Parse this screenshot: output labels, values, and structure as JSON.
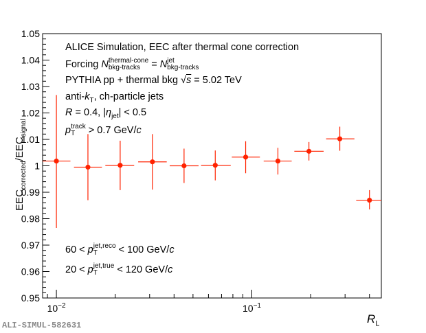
{
  "chart_data": {
    "type": "scatter",
    "xscale": "log",
    "xlim": [
      0.0085,
      0.46
    ],
    "ylim": [
      0.95,
      1.05
    ],
    "grid": false,
    "legend": "none",
    "marker_color": "#ff2200",
    "yticks": [
      0.95,
      0.96,
      0.97,
      0.98,
      0.99,
      1,
      1.01,
      1.02,
      1.03,
      1.04,
      1.05
    ],
    "ytick_labels": [
      "0.95",
      "0.96",
      "0.97",
      "0.98",
      "0.99",
      "1",
      "1.01",
      "1.02",
      "1.03",
      "1.04",
      "1.05"
    ],
    "xtick_labels": [
      {
        "value": 0.01,
        "base": "10",
        "exp": "−2"
      },
      {
        "value": 0.1,
        "base": "10",
        "exp": "−1"
      }
    ],
    "xlabel": {
      "base": "R",
      "sub": "L"
    },
    "ylabel": {
      "a": "EEC",
      "a_sub": "corrected",
      "b": "/EEC",
      "b_sub": "signal"
    },
    "points": [
      {
        "x": 0.01,
        "xlo": 0.0085,
        "xhi": 0.0118,
        "y": 1.0018,
        "ylo": 0.9765,
        "yhi": 1.0268
      },
      {
        "x": 0.0145,
        "xlo": 0.0123,
        "xhi": 0.0171,
        "y": 0.9995,
        "ylo": 0.987,
        "yhi": 1.012
      },
      {
        "x": 0.0212,
        "xlo": 0.0178,
        "xhi": 0.025,
        "y": 1.0002,
        "ylo": 0.9908,
        "yhi": 1.0095
      },
      {
        "x": 0.031,
        "xlo": 0.0262,
        "xhi": 0.0367,
        "y": 1.0015,
        "ylo": 0.991,
        "yhi": 1.012
      },
      {
        "x": 0.045,
        "xlo": 0.038,
        "xhi": 0.0534,
        "y": 1.0,
        "ylo": 0.9935,
        "yhi": 1.0065
      },
      {
        "x": 0.065,
        "xlo": 0.055,
        "xhi": 0.078,
        "y": 1.0002,
        "ylo": 0.9945,
        "yhi": 1.0058
      },
      {
        "x": 0.093,
        "xlo": 0.079,
        "xhi": 0.11,
        "y": 1.0033,
        "ylo": 0.9972,
        "yhi": 1.0093
      },
      {
        "x": 0.136,
        "xlo": 0.115,
        "xhi": 0.16,
        "y": 1.0018,
        "ylo": 0.9967,
        "yhi": 1.0068
      },
      {
        "x": 0.196,
        "xlo": 0.165,
        "xhi": 0.233,
        "y": 1.0055,
        "ylo": 1.002,
        "yhi": 1.009
      },
      {
        "x": 0.282,
        "xlo": 0.24,
        "xhi": 0.335,
        "y": 1.0102,
        "ylo": 1.0057,
        "yhi": 1.0148
      },
      {
        "x": 0.4,
        "xlo": 0.342,
        "xhi": 0.46,
        "y": 0.987,
        "ylo": 0.9835,
        "yhi": 0.9908
      }
    ]
  },
  "annotations": {
    "line1": "ALICE Simulation, EEC after thermal cone correction",
    "line2_prefix": "Forcing ",
    "n_symbol": "N",
    "line2_sup1": "thermal-cone",
    "line2_sub1": "bkg-tracks",
    "line2_eq": " = ",
    "line2_sup2": "jet",
    "line2_sub2": "bkg-tracks",
    "line3_prefix": "PYTHIA pp + thermal bkg ",
    "line3_sqrt": "√",
    "line3_s": "s",
    "line3_suffix": " = 5.02 TeV",
    "line4_prefix": "anti-",
    "line4_k": "k",
    "line4_ksub": "T",
    "line4_suffix": ", ch-particle jets",
    "line5_r": "R",
    "line5_mid": " = 0.4, |",
    "line5_eta": "η",
    "line5_etasub": "jet",
    "line5_suffix": "| < 0.5",
    "p_symbol": "p",
    "pt_sub": "T",
    "line6_sup": "track",
    "line6_suffix": " > 0.7 GeV/",
    "c_symbol": "c",
    "line7_prefix": "60 < ",
    "line7_sup": "jet,reco",
    "line7_suffix": " < 100 GeV/",
    "line8_prefix": "20 < ",
    "line8_sup": "jet,true",
    "line8_suffix": " < 120 GeV/"
  },
  "watermark": "ALI-SIMUL-582631"
}
